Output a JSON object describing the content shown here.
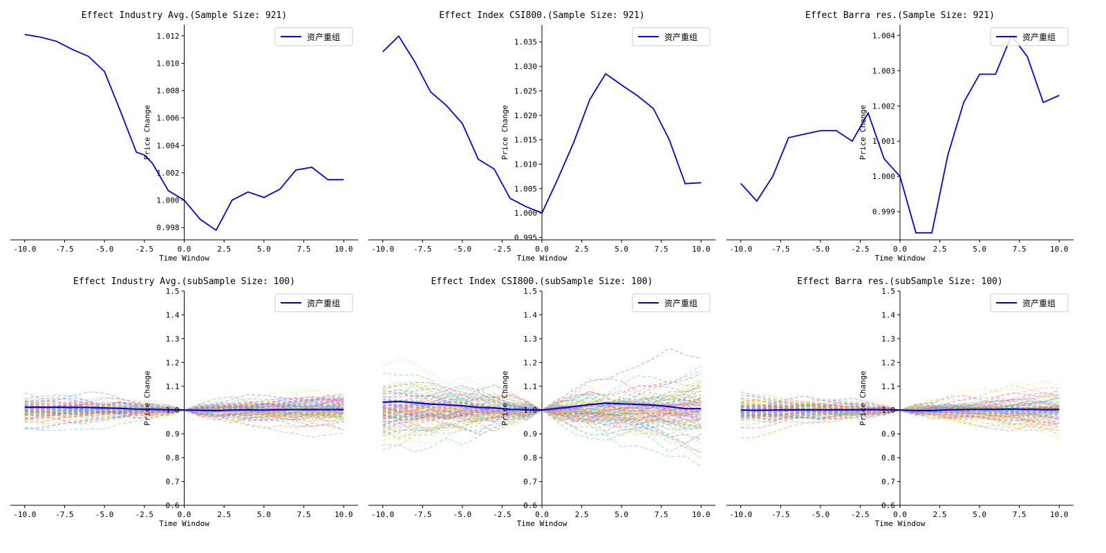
{
  "legend_label": "资产重组",
  "colors": {
    "main": "#0000ff",
    "bundle_palette": [
      "#ff8c00",
      "#ff4fa3",
      "#9b59ff",
      "#3fd2e6",
      "#6fe86f",
      "#f5e050",
      "#ff6b6b",
      "#4f8cff",
      "#b8ff5a",
      "#ffb347",
      "#d98cff",
      "#5ad1a5"
    ]
  },
  "chart_data": [
    {
      "type": "line",
      "panel": "top-left",
      "title": "Effect Industry Avg.(Sample Size: 921)",
      "xlabel": "Time Window",
      "ylabel": "Price Change",
      "xlim": [
        -10.9,
        10.9
      ],
      "ylim": [
        0.9971,
        1.0128
      ],
      "xticks": [
        -10,
        -7.5,
        -5,
        -2.5,
        0,
        2.5,
        5,
        7.5,
        10
      ],
      "xtick_labels": [
        "-10.0",
        "-7.5",
        "-5.0",
        "-2.5",
        "0.0",
        "2.5",
        "5.0",
        "7.5",
        "10.0"
      ],
      "yticks": [
        0.998,
        1.0,
        1.002,
        1.004,
        1.006,
        1.008,
        1.01,
        1.012
      ],
      "ytick_labels": [
        "0.998",
        "1.000",
        "1.002",
        "1.004",
        "1.006",
        "1.008",
        "1.010",
        "1.012"
      ],
      "legend": "top-right",
      "x": [
        -10,
        -9,
        -8,
        -7,
        -6,
        -5,
        -4,
        -3,
        -2.5,
        -2,
        -1,
        0,
        1,
        2,
        3,
        4,
        5,
        6,
        7,
        8,
        9,
        10
      ],
      "series": [
        {
          "name": "资产重组",
          "values": [
            1.0121,
            1.0119,
            1.0116,
            1.011,
            1.0105,
            1.0094,
            1.0065,
            1.0035,
            1.0033,
            1.0027,
            1.0007,
            1.0,
            0.9986,
            0.9978,
            1.0,
            1.0006,
            1.0002,
            1.0008,
            1.0022,
            1.0024,
            1.0015,
            1.0015
          ]
        }
      ]
    },
    {
      "type": "line",
      "panel": "top-middle",
      "title": "Effect Index CSI800.(Sample Size: 921)",
      "xlabel": "Time Window",
      "ylabel": "Price Change",
      "xlim": [
        -10.9,
        10.9
      ],
      "ylim": [
        0.9945,
        1.0385
      ],
      "xticks": [
        -10,
        -7.5,
        -5,
        -2.5,
        0,
        2.5,
        5,
        7.5,
        10
      ],
      "xtick_labels": [
        "-10.0",
        "-7.5",
        "-5.0",
        "-2.5",
        "0.0",
        "2.5",
        "5.0",
        "7.5",
        "10.0"
      ],
      "yticks": [
        0.995,
        1.0,
        1.005,
        1.01,
        1.015,
        1.02,
        1.025,
        1.03,
        1.035
      ],
      "ytick_labels": [
        "0.995",
        "1.000",
        "1.005",
        "1.010",
        "1.015",
        "1.020",
        "1.025",
        "1.030",
        "1.035"
      ],
      "legend": "top-right",
      "x": [
        -10,
        -9,
        -8,
        -7,
        -6,
        -5,
        -4,
        -3,
        -2,
        -1,
        0,
        1,
        2,
        3,
        4,
        5,
        6,
        7,
        8,
        9,
        10
      ],
      "series": [
        {
          "name": "资产重组",
          "values": [
            1.033,
            1.0362,
            1.031,
            1.0248,
            1.022,
            1.0183,
            1.011,
            1.009,
            1.003,
            1.0013,
            1.0,
            1.007,
            1.0145,
            1.0232,
            1.0285,
            1.0262,
            1.024,
            1.0214,
            1.015,
            1.006,
            1.0062
          ]
        }
      ]
    },
    {
      "type": "line",
      "panel": "top-right",
      "title": "Effect Barra res.(Sample Size: 921)",
      "xlabel": "Time Window",
      "ylabel": "Price Change",
      "xlim": [
        -10.9,
        10.9
      ],
      "ylim": [
        0.9982,
        1.0043
      ],
      "xticks": [
        -10,
        -7.5,
        -5,
        -2.5,
        0,
        2.5,
        5,
        7.5,
        10
      ],
      "xtick_labels": [
        "-10.0",
        "-7.5",
        "-5.0",
        "-2.5",
        "0.0",
        "2.5",
        "5.0",
        "7.5",
        "10.0"
      ],
      "yticks": [
        0.999,
        1.0,
        1.001,
        1.002,
        1.003,
        1.004
      ],
      "ytick_labels": [
        "0.999",
        "1.000",
        "1.001",
        "1.002",
        "1.003",
        "1.004"
      ],
      "legend": "top-right",
      "x": [
        -10,
        -9,
        -8,
        -7,
        -6,
        -5,
        -4,
        -3,
        -2,
        -1,
        0,
        1,
        2,
        3,
        4,
        5,
        6,
        7,
        8,
        9,
        10
      ],
      "series": [
        {
          "name": "资产重组",
          "values": [
            0.9998,
            0.9993,
            1.0,
            1.0011,
            1.0012,
            1.0013,
            1.0013,
            1.001,
            1.0018,
            1.0005,
            1.0,
            0.9984,
            0.9984,
            1.0006,
            1.0021,
            1.0029,
            1.0029,
            1.004,
            1.0034,
            1.0021,
            1.0023
          ]
        }
      ]
    },
    {
      "type": "line",
      "panel": "bottom-left",
      "title": "Effect Industry Avg.(subSample Size: 100)",
      "xlabel": "Time Window",
      "ylabel": "Price Change",
      "xlim": [
        -10.9,
        10.9
      ],
      "ylim": [
        0.6,
        1.5
      ],
      "xticks": [
        -10,
        -7.5,
        -5,
        -2.5,
        0,
        2.5,
        5,
        7.5,
        10
      ],
      "xtick_labels": [
        "-10.0",
        "-7.5",
        "-5.0",
        "-2.5",
        "0.0",
        "2.5",
        "5.0",
        "7.5",
        "10.0"
      ],
      "yticks": [
        0.6,
        0.7,
        0.8,
        0.9,
        1.0,
        1.1,
        1.2,
        1.3,
        1.4,
        1.5
      ],
      "ytick_labels": [
        "0.6",
        "0.7",
        "0.8",
        "0.9",
        "1.0",
        "1.1",
        "1.2",
        "1.3",
        "1.4",
        "1.5"
      ],
      "legend": "top-right",
      "bundle": {
        "count": 100,
        "style": "dashed",
        "pre_spread": 0.055,
        "post_spread": 0.06,
        "seed": 11
      },
      "x": [
        -10,
        -9,
        -8,
        -7,
        -6,
        -5,
        -4,
        -3,
        -2,
        -1,
        0,
        1,
        2,
        3,
        4,
        5,
        6,
        7,
        8,
        9,
        10
      ],
      "series": [
        {
          "name": "资产重组",
          "values": [
            1.012,
            1.012,
            1.012,
            1.011,
            1.011,
            1.009,
            1.007,
            1.004,
            1.003,
            1.001,
            1.0,
            0.999,
            0.998,
            1.0,
            1.001,
            1.0,
            1.001,
            1.002,
            1.002,
            1.002,
            1.002
          ]
        }
      ]
    },
    {
      "type": "line",
      "panel": "bottom-middle",
      "title": "Effect Index CSI800.(subSample Size: 100)",
      "xlabel": "Time Window",
      "ylabel": "Price Change",
      "xlim": [
        -10.9,
        10.9
      ],
      "ylim": [
        0.6,
        1.5
      ],
      "xticks": [
        -10,
        -7.5,
        -5,
        -2.5,
        0,
        2.5,
        5,
        7.5,
        10
      ],
      "xtick_labels": [
        "-10.0",
        "-7.5",
        "-5.0",
        "-2.5",
        "0.0",
        "2.5",
        "5.0",
        "7.5",
        "10.0"
      ],
      "yticks": [
        0.6,
        0.7,
        0.8,
        0.9,
        1.0,
        1.1,
        1.2,
        1.3,
        1.4,
        1.5
      ],
      "ytick_labels": [
        "0.6",
        "0.7",
        "0.8",
        "0.9",
        "1.0",
        "1.1",
        "1.2",
        "1.3",
        "1.4",
        "1.5"
      ],
      "legend": "top-right",
      "bundle": {
        "count": 100,
        "style": "dashed",
        "pre_spread": 0.11,
        "post_spread": 0.12,
        "seed": 23
      },
      "x": [
        -10,
        -9,
        -8,
        -7,
        -6,
        -5,
        -4,
        -3,
        -2,
        -1,
        0,
        1,
        2,
        3,
        4,
        5,
        6,
        7,
        8,
        9,
        10
      ],
      "series": [
        {
          "name": "资产重组",
          "values": [
            1.033,
            1.036,
            1.031,
            1.025,
            1.022,
            1.018,
            1.011,
            1.009,
            1.003,
            1.001,
            1.0,
            1.007,
            1.015,
            1.023,
            1.029,
            1.026,
            1.024,
            1.021,
            1.015,
            1.006,
            1.006
          ]
        }
      ]
    },
    {
      "type": "line",
      "panel": "bottom-right",
      "title": "Effect Barra res.(subSample Size: 100)",
      "xlabel": "Time Window",
      "ylabel": "Price Change",
      "xlim": [
        -10.9,
        10.9
      ],
      "ylim": [
        0.6,
        1.5
      ],
      "xticks": [
        -10,
        -7.5,
        -5,
        -2.5,
        0,
        2.5,
        5,
        7.5,
        10
      ],
      "xtick_labels": [
        "-10.0",
        "-7.5",
        "-5.0",
        "-2.5",
        "0.0",
        "2.5",
        "5.0",
        "7.5",
        "10.0"
      ],
      "yticks": [
        0.6,
        0.7,
        0.8,
        0.9,
        1.0,
        1.1,
        1.2,
        1.3,
        1.4,
        1.5
      ],
      "ytick_labels": [
        "0.6",
        "0.7",
        "0.8",
        "0.9",
        "1.0",
        "1.1",
        "1.2",
        "1.3",
        "1.4",
        "1.5"
      ],
      "legend": "top-right",
      "bundle": {
        "count": 100,
        "style": "dashed",
        "pre_spread": 0.055,
        "post_spread": 0.06,
        "seed": 37
      },
      "x": [
        -10,
        -9,
        -8,
        -7,
        -6,
        -5,
        -4,
        -3,
        -2,
        -1,
        0,
        1,
        2,
        3,
        4,
        5,
        6,
        7,
        8,
        9,
        10
      ],
      "series": [
        {
          "name": "资产重组",
          "values": [
            1.0,
            0.999,
            1.0,
            1.001,
            1.001,
            1.001,
            1.001,
            1.001,
            1.002,
            1.001,
            1.0,
            0.998,
            0.998,
            1.001,
            1.002,
            1.003,
            1.003,
            1.004,
            1.003,
            1.002,
            1.002
          ]
        }
      ]
    }
  ]
}
